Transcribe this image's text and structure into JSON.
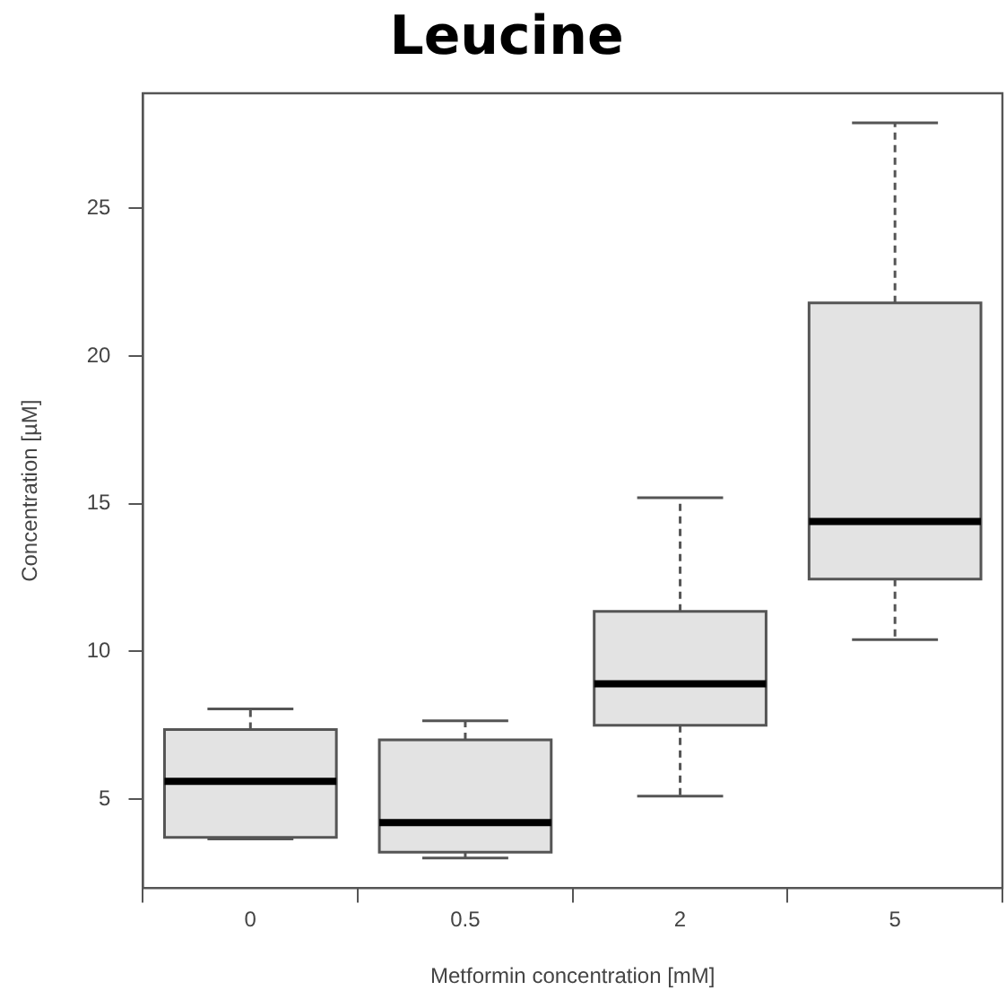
{
  "chart_data": {
    "type": "box",
    "title": "Leucine",
    "xlabel": "Metformin concentration [mM]",
    "ylabel": "Concentration [µM]",
    "categories": [
      "0",
      "0.5",
      "2",
      "5"
    ],
    "color": "#e3e3e3",
    "boxes": [
      {
        "low": 3.65,
        "q1": 3.7,
        "median": 5.6,
        "q3": 7.35,
        "high": 8.05
      },
      {
        "low": 3.0,
        "q1": 3.2,
        "median": 4.2,
        "q3": 7.0,
        "high": 7.65
      },
      {
        "low": 5.1,
        "q1": 7.5,
        "median": 8.9,
        "q3": 11.35,
        "high": 15.2
      },
      {
        "low": 10.4,
        "q1": 12.45,
        "median": 14.4,
        "q3": 21.8,
        "high": 27.9
      }
    ],
    "ylim": [
      1.98,
      28.9
    ],
    "yticks": [
      5,
      10,
      15,
      20,
      25
    ],
    "grid": false,
    "legend": false
  }
}
